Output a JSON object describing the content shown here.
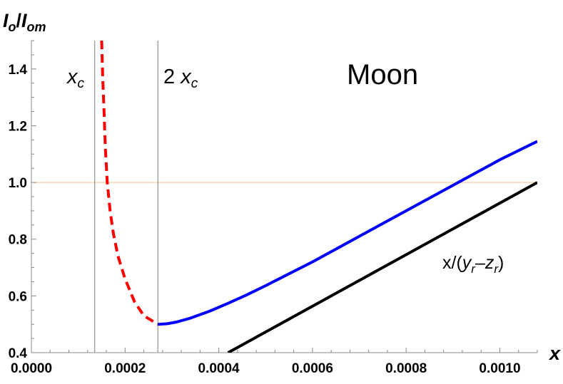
{
  "chart_data": {
    "type": "line",
    "title": "",
    "xlabel": "x",
    "ylabel": {
      "main": "I",
      "main_sub": "o",
      "sep": "/",
      "denom": "I",
      "denom_sub": "om"
    },
    "xlim": [
      0,
      0.00108
    ],
    "ylim": [
      0.4,
      1.5
    ],
    "xticks": [
      0,
      0.0002,
      0.0004,
      0.0006,
      0.0008,
      0.001
    ],
    "xtick_labels": [
      "0.0000",
      "0.0002",
      "0.0004",
      "0.0006",
      "0.0008",
      "0.0010"
    ],
    "yticks": [
      0.4,
      0.6,
      0.8,
      1.0,
      1.2,
      1.4
    ],
    "ytick_labels": [
      "0.4",
      "0.6",
      "0.8",
      "1.0",
      "1.2",
      "1.4"
    ],
    "grid": false,
    "reference_line": {
      "y": 1.0,
      "color": "#f5cfa0"
    },
    "vertical_lines": [
      {
        "x": 0.000135,
        "label": {
          "prefix": "",
          "var": "x",
          "sub": "c"
        }
      },
      {
        "x": 0.00027,
        "label": {
          "prefix": "2 ",
          "var": "x",
          "sub": "c"
        }
      }
    ],
    "annotations": {
      "body": "Moon",
      "black_line": {
        "text": "x/(",
        "v1": "y",
        "s1": "r",
        "op": "–",
        "v2": "z",
        "s2": "r",
        "close": ")"
      }
    },
    "series": [
      {
        "color": "#ff0000",
        "style": "dashed",
        "x": [
          0.00015,
          0.000152,
          0.000155,
          0.000158,
          0.000162,
          0.000168,
          0.000175,
          0.000185,
          0.0002,
          0.00022,
          0.00024,
          0.00027
        ],
        "y": [
          1.5,
          1.38,
          1.25,
          1.12,
          1.0,
          0.9,
          0.82,
          0.74,
          0.66,
          0.58,
          0.53,
          0.5
        ]
      },
      {
        "color": "#0000ff",
        "style": "solid",
        "x": [
          0.00027,
          0.00029,
          0.00031,
          0.00034,
          0.00038,
          0.00042,
          0.00046,
          0.0005,
          0.0006,
          0.0007,
          0.0008,
          0.0009,
          0.001,
          0.00108
        ],
        "y": [
          0.5,
          0.502,
          0.508,
          0.522,
          0.546,
          0.574,
          0.604,
          0.636,
          0.72,
          0.81,
          0.9,
          0.99,
          1.08,
          1.145
        ]
      },
      {
        "color": "#000000",
        "style": "solid",
        "x": [
          0.00042,
          0.00108
        ],
        "y": [
          0.4,
          1.0
        ]
      }
    ]
  }
}
